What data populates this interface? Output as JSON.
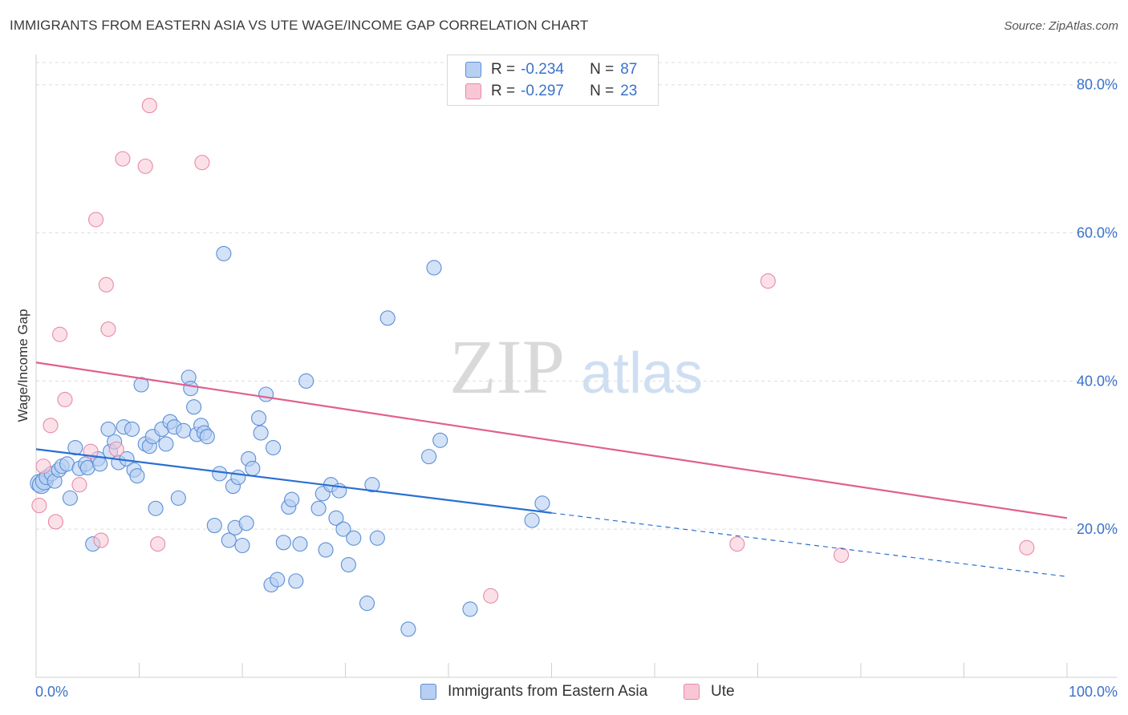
{
  "title": "IMMIGRANTS FROM EASTERN ASIA VS UTE WAGE/INCOME GAP CORRELATION CHART",
  "source": "Source: ZipAtlas.com",
  "watermark": {
    "zip": "ZIP",
    "atlas": "atlas"
  },
  "legend": {
    "rows": [
      {
        "r_label": "R =",
        "r_value": "-0.234",
        "n_label": "N =",
        "n_value": "87"
      },
      {
        "r_label": "R =",
        "r_value": "-0.297",
        "n_label": "N =",
        "n_value": "23"
      }
    ]
  },
  "colors": {
    "blue_fill": "#b6cff2",
    "blue_stroke": "#5b8fd6",
    "blue_line": "#2a6fd1",
    "pink_fill": "#f9c6d5",
    "pink_stroke": "#e78aa6",
    "pink_line": "#e0608e",
    "grid": "#dddddd",
    "axis_text": "#3a72c9"
  },
  "chart_data": {
    "type": "scatter",
    "title": "IMMIGRANTS FROM EASTERN ASIA VS UTE WAGE/INCOME GAP CORRELATION CHART",
    "xlabel": "",
    "ylabel": "Wage/Income Gap",
    "xlim": [
      0,
      100
    ],
    "ylim": [
      0,
      83
    ],
    "x_tick_labels": [
      "0.0%",
      "100.0%"
    ],
    "y_ticks": [
      20,
      40,
      60,
      80
    ],
    "y_tick_labels": [
      "20.0%",
      "40.0%",
      "60.0%",
      "80.0%"
    ],
    "series": [
      {
        "name": "Immigrants from Eastern Asia",
        "r": -0.234,
        "n": 87,
        "trend": {
          "x0": 0,
          "y0": 30.8,
          "x1": 50,
          "y1": 22.2,
          "dash_to_x": 100,
          "dash_to_y": 13.6
        },
        "points": [
          [
            0.3,
            26.2
          ],
          [
            0.5,
            26.0
          ],
          [
            0.8,
            26.5
          ],
          [
            1.0,
            27.0
          ],
          [
            1.5,
            27.5
          ],
          [
            1.8,
            26.5
          ],
          [
            2.2,
            28.0
          ],
          [
            2.5,
            28.5
          ],
          [
            3.0,
            28.8
          ],
          [
            3.3,
            24.2
          ],
          [
            3.8,
            31.0
          ],
          [
            4.2,
            28.2
          ],
          [
            4.8,
            28.8
          ],
          [
            5.0,
            28.3
          ],
          [
            5.5,
            18.0
          ],
          [
            6.0,
            29.5
          ],
          [
            6.2,
            28.8
          ],
          [
            7.0,
            33.5
          ],
          [
            7.2,
            30.5
          ],
          [
            7.6,
            31.8
          ],
          [
            8.0,
            29.0
          ],
          [
            8.5,
            33.8
          ],
          [
            8.8,
            29.5
          ],
          [
            9.3,
            33.5
          ],
          [
            9.5,
            28.0
          ],
          [
            9.8,
            27.2
          ],
          [
            10.2,
            39.5
          ],
          [
            10.6,
            31.5
          ],
          [
            11.0,
            31.2
          ],
          [
            11.3,
            32.5
          ],
          [
            11.6,
            22.8
          ],
          [
            12.2,
            33.5
          ],
          [
            12.6,
            31.5
          ],
          [
            13.0,
            34.5
          ],
          [
            13.4,
            33.8
          ],
          [
            13.8,
            24.2
          ],
          [
            14.3,
            33.3
          ],
          [
            14.8,
            40.5
          ],
          [
            15.0,
            39.0
          ],
          [
            15.3,
            36.5
          ],
          [
            15.6,
            32.8
          ],
          [
            16.0,
            34.0
          ],
          [
            16.3,
            33.0
          ],
          [
            16.6,
            32.5
          ],
          [
            17.3,
            20.5
          ],
          [
            17.8,
            27.5
          ],
          [
            18.2,
            57.2
          ],
          [
            18.7,
            18.5
          ],
          [
            19.1,
            25.8
          ],
          [
            19.3,
            20.2
          ],
          [
            19.6,
            27.0
          ],
          [
            20.0,
            17.8
          ],
          [
            20.4,
            20.8
          ],
          [
            20.6,
            29.5
          ],
          [
            21.0,
            28.2
          ],
          [
            21.6,
            35.0
          ],
          [
            21.8,
            33.0
          ],
          [
            22.3,
            38.2
          ],
          [
            22.8,
            12.5
          ],
          [
            23.0,
            31.0
          ],
          [
            23.4,
            13.2
          ],
          [
            24.0,
            18.2
          ],
          [
            24.5,
            23.0
          ],
          [
            24.8,
            24.0
          ],
          [
            25.2,
            13.0
          ],
          [
            25.6,
            18.0
          ],
          [
            26.2,
            40.0
          ],
          [
            27.4,
            22.8
          ],
          [
            27.8,
            24.8
          ],
          [
            28.1,
            17.2
          ],
          [
            28.6,
            26.0
          ],
          [
            29.1,
            21.5
          ],
          [
            29.4,
            25.2
          ],
          [
            29.8,
            20.0
          ],
          [
            30.3,
            15.2
          ],
          [
            30.8,
            18.8
          ],
          [
            32.1,
            10.0
          ],
          [
            32.6,
            26.0
          ],
          [
            33.1,
            18.8
          ],
          [
            34.1,
            48.5
          ],
          [
            36.1,
            6.5
          ],
          [
            38.1,
            29.8
          ],
          [
            38.6,
            55.3
          ],
          [
            39.2,
            32.0
          ],
          [
            42.1,
            9.2
          ],
          [
            48.1,
            21.2
          ],
          [
            49.1,
            23.5
          ]
        ]
      },
      {
        "name": "Ute",
        "r": -0.297,
        "n": 23,
        "trend": {
          "x0": 0,
          "y0": 42.5,
          "x1": 100,
          "y1": 21.5
        },
        "points": [
          [
            0.3,
            23.2
          ],
          [
            0.7,
            28.5
          ],
          [
            1.4,
            34.0
          ],
          [
            1.9,
            21.0
          ],
          [
            2.3,
            46.3
          ],
          [
            2.8,
            37.5
          ],
          [
            4.2,
            26.0
          ],
          [
            5.3,
            30.5
          ],
          [
            5.8,
            61.8
          ],
          [
            6.3,
            18.5
          ],
          [
            6.8,
            53.0
          ],
          [
            7.0,
            47.0
          ],
          [
            7.8,
            30.8
          ],
          [
            8.4,
            70.0
          ],
          [
            10.6,
            69.0
          ],
          [
            11.0,
            77.2
          ],
          [
            11.8,
            18.0
          ],
          [
            16.1,
            69.5
          ],
          [
            44.1,
            11.0
          ],
          [
            68.0,
            18.0
          ],
          [
            71.0,
            53.5
          ],
          [
            78.1,
            16.5
          ],
          [
            96.1,
            17.5
          ]
        ]
      }
    ]
  },
  "bottom_legend": [
    {
      "label": "Immigrants from Eastern Asia"
    },
    {
      "label": "Ute"
    }
  ]
}
